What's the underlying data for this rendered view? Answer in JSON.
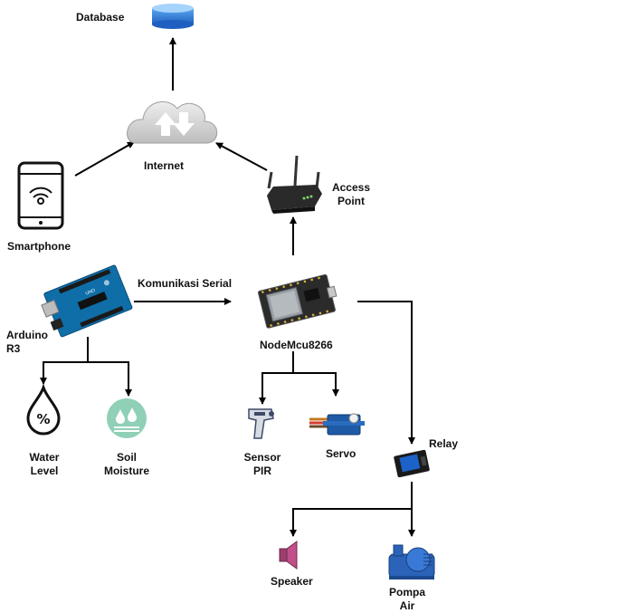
{
  "labels": {
    "database": "Database",
    "internet": "Internet",
    "smartphone": "Smartphone",
    "access_point": "Access\nPoint",
    "arduino": "Arduino\nR3",
    "komunikasi": "Komunikasi Serial",
    "nodemcu": "NodeMcu8266",
    "water_level": "Water\nLevel",
    "soil_moisture": "Soil\nMoisture",
    "sensor_pir": "Sensor\nPIR",
    "servo": "Servo",
    "relay": "Relay",
    "speaker": "Speaker",
    "pompa_air": "Pompa\nAir"
  },
  "icons": [
    "database-icon",
    "cloud-icon",
    "smartphone-icon",
    "router-icon",
    "arduino-board-icon",
    "nodemcu-board-icon",
    "water-drop-icon",
    "soil-moisture-icon",
    "pir-sensor-icon",
    "servo-icon",
    "relay-icon",
    "speaker-icon",
    "water-pump-icon"
  ]
}
